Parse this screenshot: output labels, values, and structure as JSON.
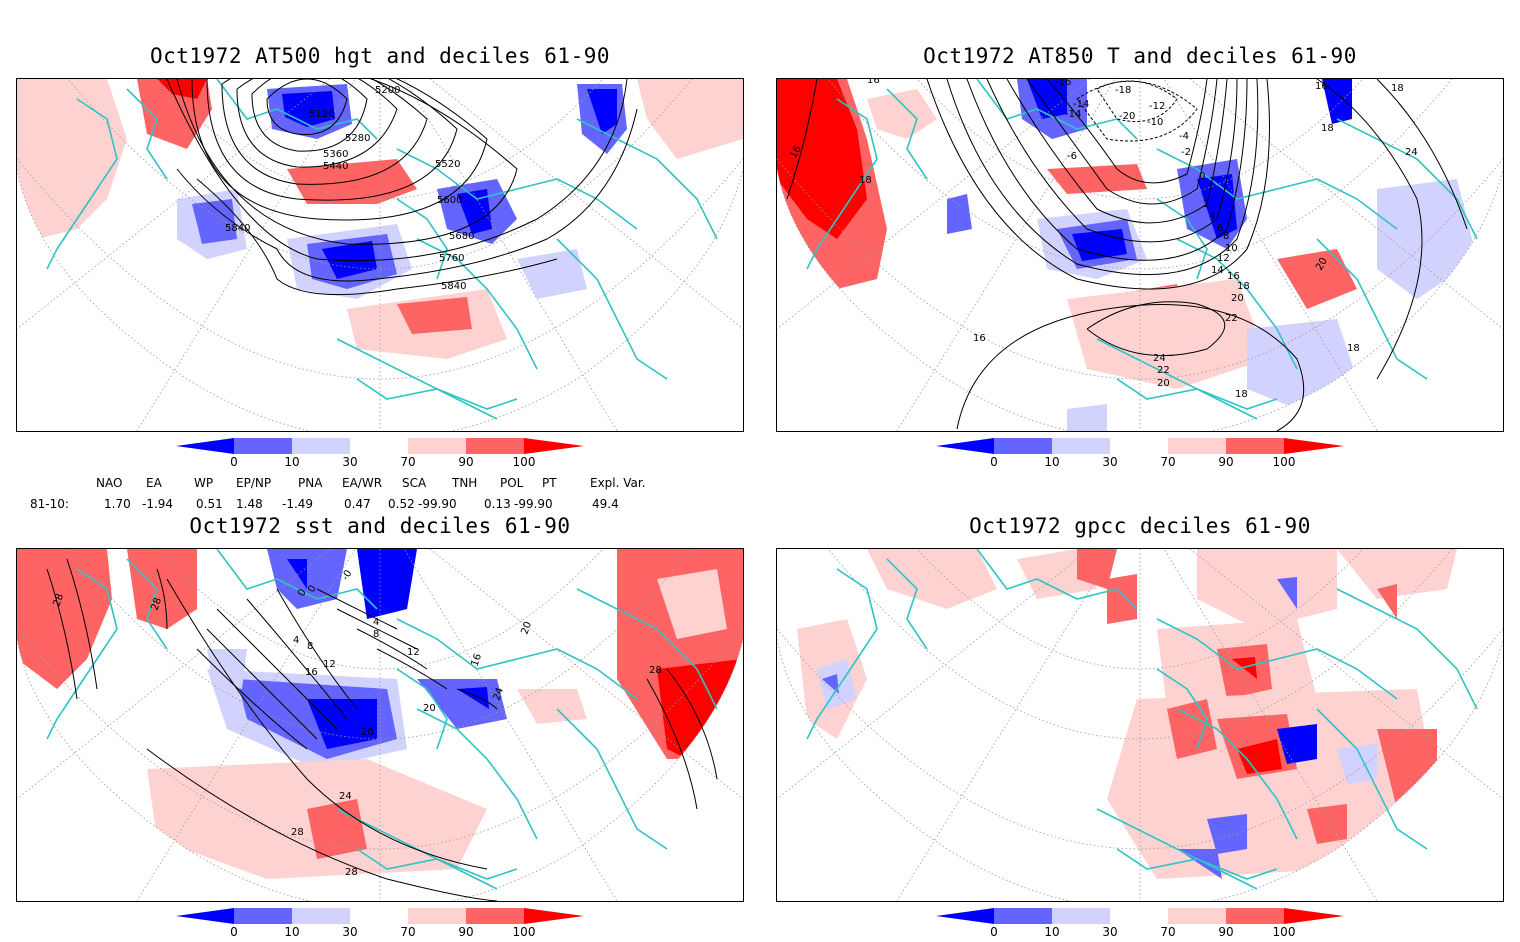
{
  "panels": [
    {
      "title": "Oct1972 AT500 hgt and deciles 61-90",
      "contour_labels": [
        "5200",
        "5120",
        "5280",
        "5360",
        "5440",
        "5520",
        "5600",
        "5680",
        "5760",
        "5840",
        "5840"
      ]
    },
    {
      "title": "Oct1972 AT850 T and deciles 61-90",
      "contour_labels": [
        "16",
        "18",
        "-16",
        "-14",
        "-18",
        "-20",
        "-12",
        "-10",
        "-14",
        "-4",
        "-2",
        "-6",
        "0",
        "2",
        "4",
        "6",
        "8",
        "10",
        "12",
        "14",
        "16",
        "18",
        "20",
        "22",
        "24",
        "22",
        "20",
        "18",
        "16",
        "16",
        "18",
        "20",
        "24",
        "18",
        "16",
        "18"
      ]
    },
    {
      "title": "Oct1972 sst and deciles 61-90",
      "contour_labels": [
        "28",
        "28",
        "0",
        "0",
        "-0",
        "4",
        "8",
        "12",
        "16",
        "20",
        "20",
        "24",
        "28",
        "28",
        "4",
        "8",
        "12",
        "16",
        "20",
        "24",
        "28"
      ]
    },
    {
      "title": "Oct1972 gpcc deciles 61-90",
      "contour_labels": []
    }
  ],
  "colorbar": {
    "labels": [
      "0",
      "10",
      "30",
      "70",
      "90",
      "100"
    ],
    "colors": [
      "#0000ff",
      "#6464ff",
      "#d2d2ff",
      "#ffffff",
      "#ffd2d2",
      "#ff6464",
      "#ff0000"
    ]
  },
  "indices": {
    "headers": [
      "NAO",
      "EA",
      "WP",
      "EP/NP",
      "PNA",
      "EA/WR",
      "SCA",
      "TNH",
      "POL",
      "PT",
      "Expl. Var."
    ],
    "row_label": "81-10:",
    "values": [
      "1.70",
      "-1.94",
      "0.51",
      "1.48",
      "-1.49",
      "0.47",
      "0.52",
      "-99.90",
      "0.13",
      "-99.90",
      "49.4"
    ]
  },
  "colors": {
    "coast": "#2ec4c4",
    "grid": "#9a9a9a",
    "contour": "#000000"
  }
}
